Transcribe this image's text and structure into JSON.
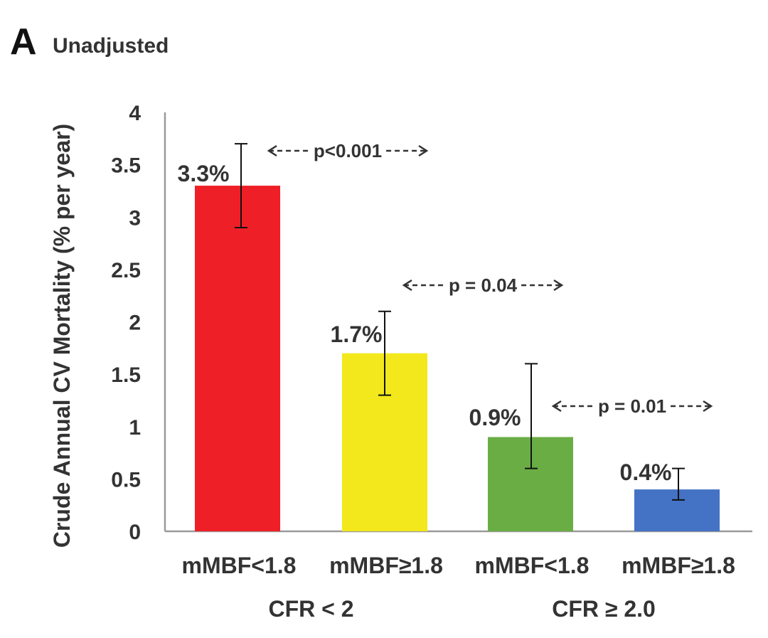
{
  "panel": {
    "letter": "A",
    "title": "Unadjusted"
  },
  "chart_data": {
    "type": "bar",
    "ylabel": "Crude Annual CV Mortality (% per year)",
    "ylim": [
      0,
      4
    ],
    "yticks": [
      0,
      0.5,
      1,
      1.5,
      2,
      2.5,
      3,
      3.5,
      4
    ],
    "ytick_labels": [
      "0",
      "0.5",
      "1",
      "1.5",
      "2",
      "2.5",
      "3",
      "3.5",
      "4"
    ],
    "categories": [
      "mMBF<1.8",
      "mMBF≥1.8",
      "mMBF<1.8",
      "mMBF≥1.8"
    ],
    "values": [
      3.3,
      1.7,
      0.9,
      0.4
    ],
    "error_low": [
      2.9,
      1.3,
      0.6,
      0.3
    ],
    "error_high": [
      3.7,
      2.1,
      1.6,
      0.6
    ],
    "data_labels": [
      "3.3%",
      "1.7%",
      "0.9%",
      "0.4%"
    ],
    "colors": [
      "#ee1f26",
      "#f2e81b",
      "#6aad45",
      "#4472c4"
    ],
    "groups": [
      {
        "label": "CFR < 2",
        "members": [
          0,
          1
        ]
      },
      {
        "label": "CFR ≥ 2.0",
        "members": [
          2,
          3
        ]
      }
    ],
    "comparisons": [
      {
        "label": "p<0.001",
        "between": [
          0,
          1
        ]
      },
      {
        "label": "p = 0.04",
        "between": [
          1,
          2
        ]
      },
      {
        "label": "p = 0.01",
        "between": [
          2,
          3
        ]
      }
    ],
    "grid": false
  }
}
